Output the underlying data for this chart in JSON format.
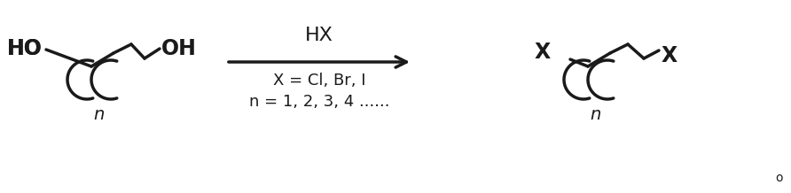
{
  "bg_color": "#ffffff",
  "line_color": "#1a1a1a",
  "reagent_text": "HX",
  "condition1": "X = Cl, Br, I",
  "condition2": "n = 1, 2, 3, 4 ......",
  "label_n": "n",
  "label_n2": "n",
  "copyright": "o",
  "figsize": [
    8.92,
    2.18
  ],
  "dpi": 100
}
